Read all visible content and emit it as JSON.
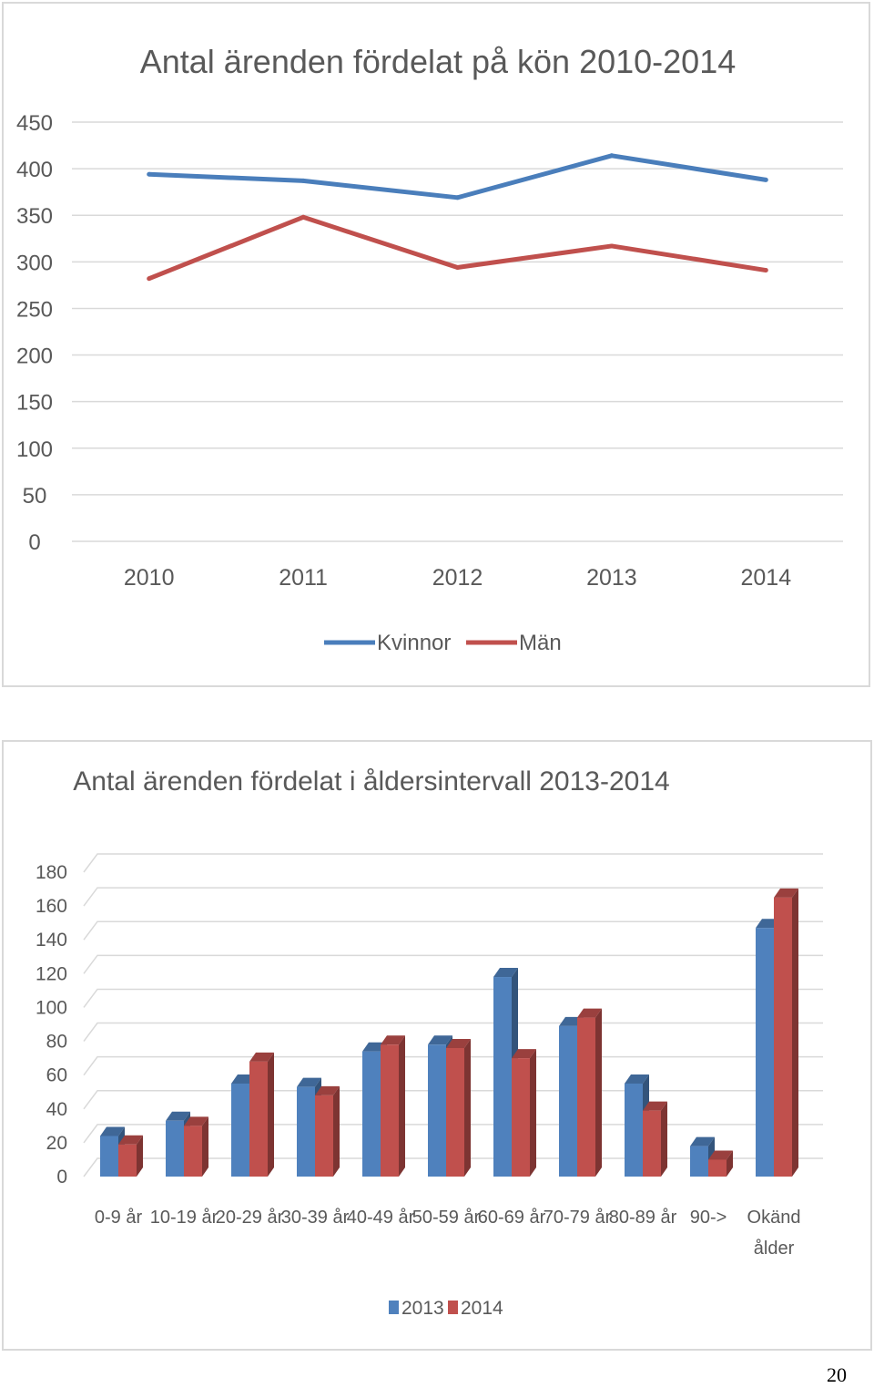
{
  "chart_data": [
    {
      "type": "line",
      "title": "Antal ärenden fördelat på kön 2010-2014",
      "x": [
        "2010",
        "2011",
        "2012",
        "2013",
        "2014"
      ],
      "series": [
        {
          "name": "Kvinnor",
          "color": "#4a7ebb",
          "values": [
            394,
            387,
            369,
            414,
            388
          ]
        },
        {
          "name": "Män",
          "color": "#c0504d",
          "values": [
            282,
            348,
            294,
            317,
            291
          ]
        }
      ],
      "ylim": [
        0,
        450
      ],
      "yticks": [
        0,
        50,
        100,
        150,
        200,
        250,
        300,
        350,
        400,
        450
      ],
      "grid": true,
      "legend_position": "bottom"
    },
    {
      "type": "bar",
      "title": "Antal ärenden fördelat i åldersintervall 2013-2014",
      "categories": [
        "0-9 år",
        "10-19 år",
        "20-29 år",
        "30-39 år",
        "40-49 år",
        "50-59 år",
        "60-69 år",
        "70-79 år",
        "80-89 år",
        "90->",
        "Okänd ålder"
      ],
      "series": [
        {
          "name": "2013",
          "color": "#4f81bd",
          "values": [
            24,
            33,
            55,
            53,
            74,
            78,
            118,
            89,
            55,
            18,
            147
          ]
        },
        {
          "name": "2014",
          "color": "#c0504d",
          "values": [
            19,
            30,
            68,
            48,
            78,
            76,
            70,
            94,
            39,
            10,
            165
          ]
        }
      ],
      "ylim": [
        0,
        180
      ],
      "yticks": [
        0,
        20,
        40,
        60,
        80,
        100,
        120,
        140,
        160,
        180
      ],
      "grid": true,
      "three_d": true,
      "legend_position": "bottom"
    }
  ],
  "page": {
    "number": "20"
  }
}
